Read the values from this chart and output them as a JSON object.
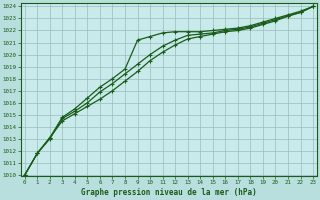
{
  "title": "Graphe pression niveau de la mer (hPa)",
  "background_color": "#b8dede",
  "plot_bg_color": "#c8eaea",
  "grid_color": "#9bbcbc",
  "line_color": "#1a5c1a",
  "x_ticks": [
    0,
    1,
    2,
    3,
    4,
    5,
    6,
    7,
    8,
    9,
    10,
    11,
    12,
    13,
    14,
    15,
    16,
    17,
    18,
    19,
    20,
    21,
    22,
    23
  ],
  "ylim": [
    1010,
    1024
  ],
  "yticks": [
    1010,
    1011,
    1012,
    1013,
    1014,
    1015,
    1016,
    1017,
    1018,
    1019,
    1020,
    1021,
    1022,
    1023,
    1024
  ],
  "line1": [
    1010.0,
    1011.8,
    1013.1,
    1014.8,
    1015.5,
    1016.4,
    1017.3,
    1018.0,
    1018.8,
    1021.2,
    1021.5,
    1021.8,
    1021.9,
    1021.9,
    1021.9,
    1022.0,
    1022.1,
    1022.2,
    1022.4,
    1022.7,
    1023.0,
    1023.3,
    1023.6,
    1024.0
  ],
  "line2": [
    1010.0,
    1011.8,
    1013.1,
    1014.5,
    1015.1,
    1015.7,
    1016.3,
    1017.0,
    1017.8,
    1018.6,
    1019.5,
    1020.2,
    1020.8,
    1021.3,
    1021.5,
    1021.7,
    1021.9,
    1022.0,
    1022.2,
    1022.5,
    1022.8,
    1023.2,
    1023.5,
    1024.0
  ],
  "line3": [
    1010.0,
    1011.8,
    1013.0,
    1014.7,
    1015.3,
    1016.0,
    1016.9,
    1017.6,
    1018.4,
    1019.2,
    1020.0,
    1020.7,
    1021.2,
    1021.6,
    1021.7,
    1021.8,
    1022.0,
    1022.1,
    1022.3,
    1022.6,
    1022.9,
    1023.2,
    1023.5,
    1024.0
  ]
}
